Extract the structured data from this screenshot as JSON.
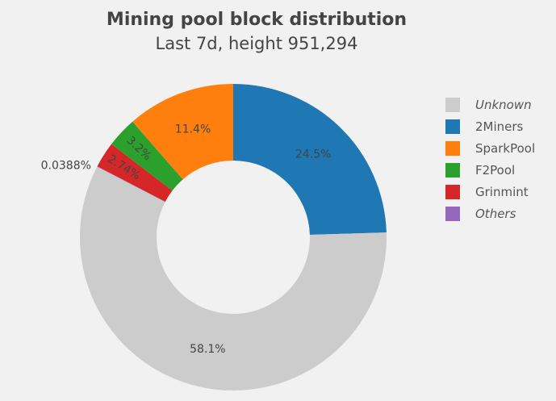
{
  "header": {
    "title": "Mining pool block distribution",
    "subtitle": "Last 7d, height 951,294"
  },
  "legend": {
    "items": [
      {
        "label": "Unknown",
        "color": "#cccccc",
        "italic": true
      },
      {
        "label": "2Miners",
        "color": "#1f77b4",
        "italic": false
      },
      {
        "label": "SparkPool",
        "color": "#ff7f0e",
        "italic": false
      },
      {
        "label": "F2Pool",
        "color": "#2ca02c",
        "italic": false
      },
      {
        "label": "Grinmint",
        "color": "#d62728",
        "italic": false
      },
      {
        "label": "Others",
        "color": "#9467bd",
        "italic": true
      }
    ]
  },
  "chart_data": {
    "type": "pie",
    "title": "Mining pool block distribution",
    "subtitle": "Last 7d, height 951,294",
    "hole": 0.5,
    "direction": "clockwise",
    "legend_position": "right",
    "categories": [
      "Unknown",
      "2Miners",
      "SparkPool",
      "F2Pool",
      "Grinmint",
      "Others"
    ],
    "values": [
      58.1,
      24.5,
      11.4,
      3.2,
      2.74,
      0.0388
    ],
    "labels": [
      "58.1%",
      "24.5%",
      "11.4%",
      "3.2%",
      "2.74%",
      "0.0388%"
    ],
    "colors": [
      "#cccccc",
      "#1f77b4",
      "#ff7f0e",
      "#2ca02c",
      "#d62728",
      "#9467bd"
    ],
    "draw_order_clockwise_from_top": [
      "2Miners",
      "Unknown",
      "Others",
      "Grinmint",
      "F2Pool",
      "SparkPool"
    ]
  }
}
